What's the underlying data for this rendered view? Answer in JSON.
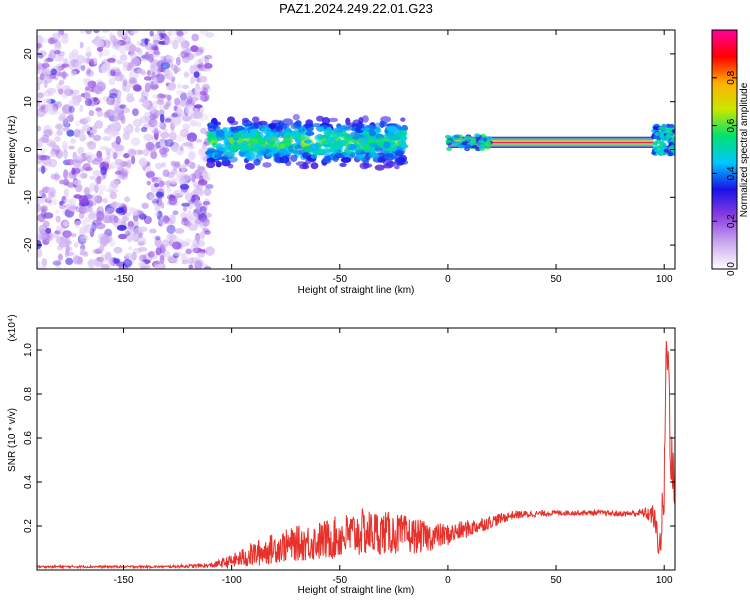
{
  "colors": {
    "background": "#ffffff",
    "axis": "#000000",
    "snr_line": "#e8302a"
  },
  "chart_data": [
    {
      "type": "heatmap",
      "title": "PAZ1.2024.249.22.01.G23",
      "xlabel": "Height of straight line (km)",
      "ylabel": "Frequency (Hz)",
      "xlim": [
        -190,
        105
      ],
      "ylim": [
        -25,
        25
      ],
      "x_ticks": [
        -150,
        -100,
        -50,
        0,
        50,
        100
      ],
      "y_ticks": [
        -20,
        -10,
        0,
        10,
        20
      ],
      "colorbar": {
        "label": "Normalized spectral amplitude",
        "range": [
          0.0,
          1.0
        ],
        "ticks": [
          "0.0",
          "0.2",
          "0.4",
          "0.6",
          "0.8"
        ],
        "tick_values": [
          0.0,
          0.2,
          0.4,
          0.6,
          0.8
        ],
        "colormap": [
          "#ffffff",
          "#c9a8f0",
          "#8a3fe0",
          "#1a10e8",
          "#00c8ff",
          "#00e070",
          "#c8e800",
          "#ffb000",
          "#ff0000",
          "#ff00a0"
        ]
      },
      "grid": false,
      "features": [
        {
          "region": "noise",
          "x_range": [
            -190,
            -110
          ],
          "freq_range": [
            -25,
            25
          ],
          "amplitude": [
            0.05,
            0.25
          ]
        },
        {
          "region": "dispersed",
          "x_range": [
            -110,
            -20
          ],
          "freq_center": 1.5,
          "freq_halfwidth": 4,
          "amplitude": [
            0.25,
            0.55
          ]
        },
        {
          "region": "narrow_tone",
          "x_range": [
            0,
            95
          ],
          "freq_center": 1.5,
          "freq_halfwidth": 1.0,
          "amplitude": [
            0.8,
            0.95
          ]
        },
        {
          "region": "edge",
          "x_range": [
            95,
            105
          ],
          "freq_center": 2,
          "freq_halfwidth": 3,
          "amplitude": [
            0.3,
            0.55
          ]
        }
      ]
    },
    {
      "type": "line",
      "xlabel": "Height of straight line (km)",
      "ylabel": "SNR (10 * v/v)",
      "y_multiplier": "(x10⁴)",
      "xlim": [
        -190,
        105
      ],
      "ylim": [
        0,
        1.1
      ],
      "x_ticks": [
        -150,
        -100,
        -50,
        0,
        50,
        100
      ],
      "y_ticks": [
        0.2,
        0.4,
        0.6,
        0.8,
        1.0
      ],
      "grid": false,
      "series": [
        {
          "color": "#e8302a",
          "x": [
            -190,
            -170,
            -150,
            -130,
            -110,
            -100,
            -90,
            -80,
            -70,
            -60,
            -50,
            -40,
            -30,
            -20,
            -10,
            0,
            10,
            20,
            30,
            40,
            50,
            60,
            70,
            80,
            90,
            95,
            98,
            100,
            101,
            102,
            103,
            104
          ],
          "values": [
            0.015,
            0.015,
            0.015,
            0.015,
            0.02,
            0.04,
            0.07,
            0.1,
            0.12,
            0.13,
            0.15,
            0.17,
            0.17,
            0.16,
            0.15,
            0.16,
            0.19,
            0.22,
            0.25,
            0.255,
            0.26,
            0.26,
            0.26,
            0.255,
            0.26,
            0.25,
            0.1,
            0.35,
            1.05,
            0.9,
            0.6,
            0.4
          ],
          "noise_amplitude": [
            0.005,
            0.005,
            0.005,
            0.005,
            0.01,
            0.03,
            0.06,
            0.07,
            0.08,
            0.09,
            0.1,
            0.11,
            0.1,
            0.09,
            0.07,
            0.05,
            0.04,
            0.03,
            0.02,
            0.015,
            0.012,
            0.012,
            0.012,
            0.012,
            0.02,
            0.05,
            0.08,
            0.15,
            0.05,
            0.2,
            0.2,
            0.15
          ]
        }
      ]
    }
  ]
}
